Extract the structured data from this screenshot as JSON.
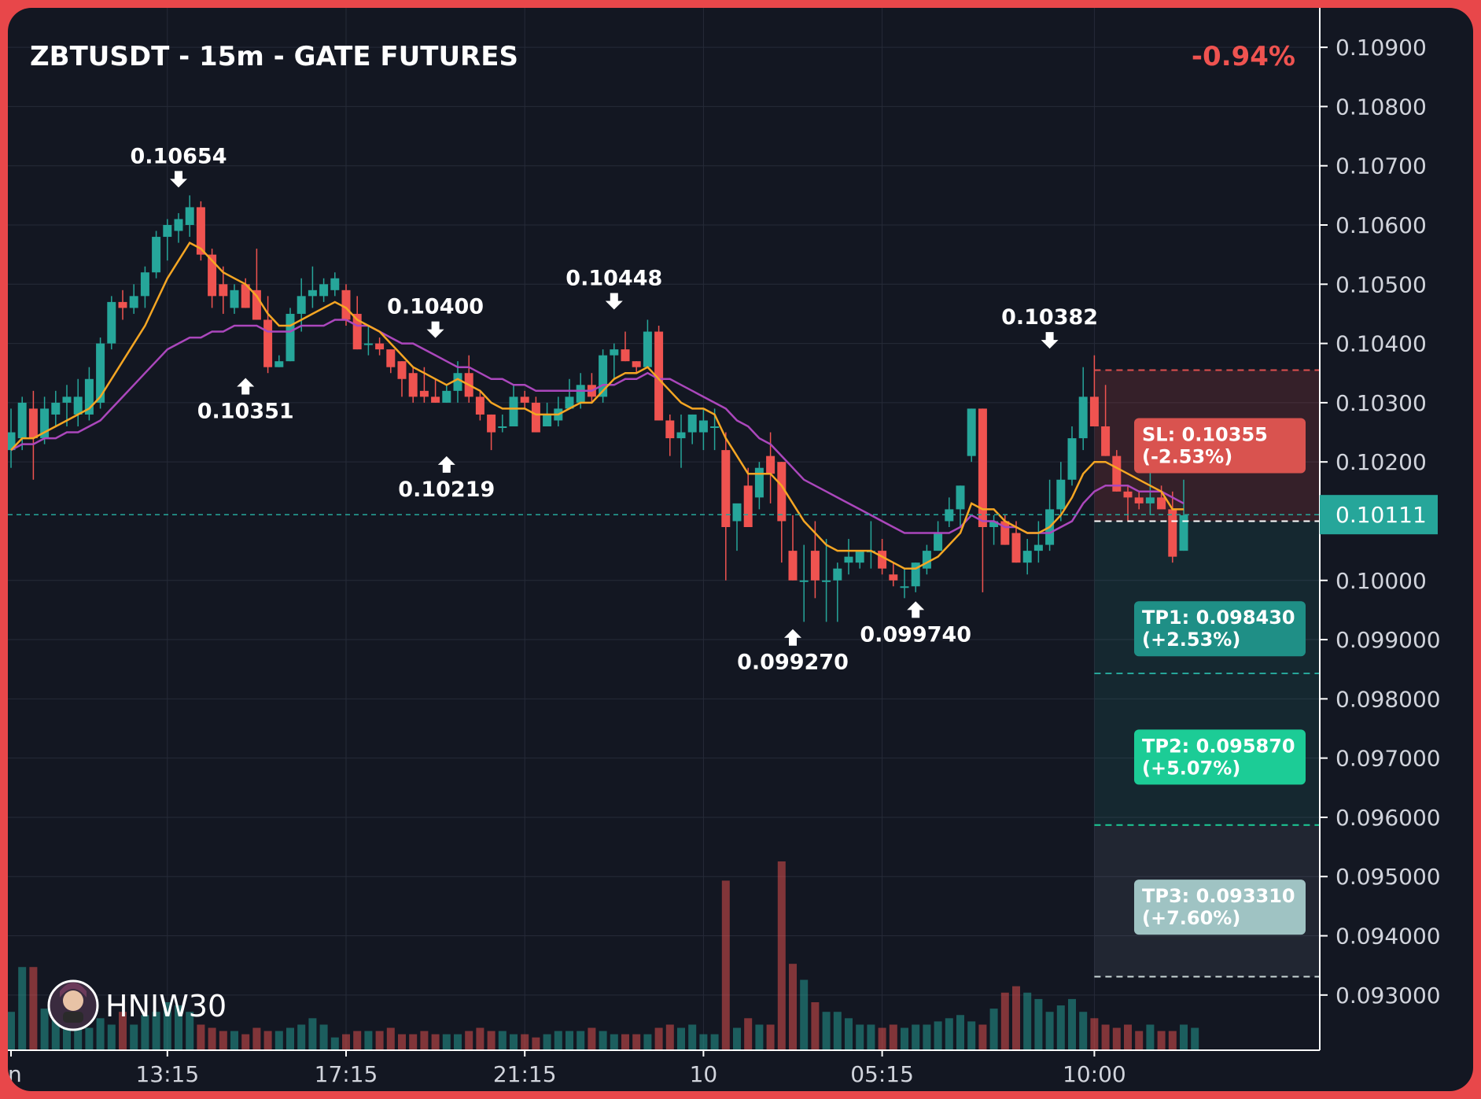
{
  "title": "ZBTUSDT - 15m - GATE FUTURES",
  "change": "-0.94%",
  "colors": {
    "background": "#131722",
    "up": "#26a69a",
    "down": "#ef5350",
    "ema_fast": "#f5a623",
    "ema_slow": "#ab47bc",
    "change": "#ef5350",
    "sl": "#d9534f",
    "tp1": "#1f8f86",
    "tp2": "#1ccc96",
    "tp3": "#9fc3c3",
    "current_price_tag": "#26a69a"
  },
  "watermark": {
    "avatar_icon": "avatar-icon",
    "text": "HNIW30"
  },
  "current_price": {
    "value": 0.10111,
    "label": "0.10111"
  },
  "levels": [
    {
      "name": "SL",
      "label_line1": "SL: 0.10355",
      "label_line2": "(-2.53%)",
      "price": 0.10355,
      "color": "#d9534f",
      "line_color": "#e0504f"
    },
    {
      "name": "Entry",
      "label_line1": "",
      "label_line2": "",
      "price": 0.101,
      "color": "#ffffff",
      "line_color": "#ffffff"
    },
    {
      "name": "TP1",
      "label_line1": "TP1: 0.098430",
      "label_line2": "(+2.53%)",
      "price": 0.09843,
      "color": "#1f8f86",
      "line_color": "#26a69a"
    },
    {
      "name": "TP2",
      "label_line1": "TP2: 0.095870",
      "label_line2": "(+5.07%)",
      "price": 0.09587,
      "color": "#1ccc96",
      "line_color": "#1ccc96"
    },
    {
      "name": "TP3",
      "label_line1": "TP3: 0.093310",
      "label_line2": "(+7.60%)",
      "price": 0.09331,
      "color": "#9fc3c3",
      "line_color": "#c9d6d6"
    }
  ],
  "chart_data": {
    "type": "candlestick",
    "title": "ZBTUSDT - 15m - GATE FUTURES",
    "ylim": [
      0.0924,
      0.1094
    ],
    "y_ticks": [
      "0.10900",
      "0.10800",
      "0.10700",
      "0.10600",
      "0.10500",
      "0.10400",
      "0.10300",
      "0.10200",
      "0.10111",
      "0.10000",
      "0.099000",
      "0.098000",
      "0.097000",
      "0.096000",
      "0.095000",
      "0.094000",
      "0.093000"
    ],
    "y_tick_values": [
      0.109,
      0.108,
      0.107,
      0.106,
      0.105,
      0.104,
      0.103,
      0.102,
      0.10111,
      0.1,
      0.099,
      0.098,
      0.097,
      0.096,
      0.095,
      0.094,
      0.093
    ],
    "x_ticks": [
      {
        "label": "n",
        "index": 0
      },
      {
        "label": "13:15",
        "index": 14
      },
      {
        "label": "17:15",
        "index": 30
      },
      {
        "label": "21:15",
        "index": 46
      },
      {
        "label": "10",
        "index": 62
      },
      {
        "label": "05:15",
        "index": 78
      },
      {
        "label": "10:00",
        "index": 97
      }
    ],
    "candles": [
      [
        0.1022,
        0.1029,
        0.1019,
        0.1025
      ],
      [
        0.1024,
        0.1031,
        0.1022,
        0.103
      ],
      [
        0.1029,
        0.1032,
        0.1017,
        0.1024
      ],
      [
        0.1024,
        0.1031,
        0.1023,
        0.1029
      ],
      [
        0.1028,
        0.1032,
        0.1026,
        0.103
      ],
      [
        0.103,
        0.1033,
        0.1026,
        0.1031
      ],
      [
        0.1028,
        0.1034,
        0.1026,
        0.1031
      ],
      [
        0.1028,
        0.1036,
        0.1027,
        0.1034
      ],
      [
        0.103,
        0.1041,
        0.1029,
        0.104
      ],
      [
        0.104,
        0.1048,
        0.1039,
        0.1047
      ],
      [
        0.1047,
        0.1049,
        0.1044,
        0.1046
      ],
      [
        0.1046,
        0.105,
        0.1045,
        0.1048
      ],
      [
        0.1048,
        0.1053,
        0.1046,
        0.1052
      ],
      [
        0.1052,
        0.1059,
        0.1051,
        0.1058
      ],
      [
        0.1058,
        0.1061,
        0.1054,
        0.106
      ],
      [
        0.1059,
        0.1062,
        0.1057,
        0.1061
      ],
      [
        0.106,
        0.1065,
        0.1058,
        0.1063
      ],
      [
        0.1063,
        0.1064,
        0.1054,
        0.1055
      ],
      [
        0.1055,
        0.1056,
        0.1046,
        0.1048
      ],
      [
        0.105,
        0.1053,
        0.1045,
        0.1048
      ],
      [
        0.1046,
        0.105,
        0.1045,
        0.1049
      ],
      [
        0.105,
        0.1051,
        0.1046,
        0.1046
      ],
      [
        0.1049,
        0.1056,
        0.1044,
        0.1044
      ],
      [
        0.1044,
        0.1048,
        0.1035,
        0.1036
      ],
      [
        0.1036,
        0.1038,
        0.1036,
        0.1037
      ],
      [
        0.1037,
        0.1046,
        0.1037,
        0.1045
      ],
      [
        0.1045,
        0.1051,
        0.1042,
        0.1048
      ],
      [
        0.1048,
        0.1053,
        0.1046,
        0.1049
      ],
      [
        0.1048,
        0.1051,
        0.1047,
        0.105
      ],
      [
        0.1049,
        0.1052,
        0.1048,
        0.1051
      ],
      [
        0.1049,
        0.105,
        0.1043,
        0.1044
      ],
      [
        0.1045,
        0.1048,
        0.1039,
        0.1039
      ],
      [
        0.104,
        0.1043,
        0.1038,
        0.104
      ],
      [
        0.104,
        0.1041,
        0.1038,
        0.1039
      ],
      [
        0.1039,
        0.1039,
        0.1035,
        0.1036
      ],
      [
        0.1037,
        0.1037,
        0.1031,
        0.1034
      ],
      [
        0.1035,
        0.1036,
        0.103,
        0.1031
      ],
      [
        0.1032,
        0.1036,
        0.103,
        0.1031
      ],
      [
        0.1031,
        0.1034,
        0.103,
        0.103
      ],
      [
        0.103,
        0.1033,
        0.103,
        0.1032
      ],
      [
        0.1032,
        0.1037,
        0.103,
        0.1035
      ],
      [
        0.1035,
        0.1038,
        0.103,
        0.1031
      ],
      [
        0.1031,
        0.1032,
        0.1027,
        0.1028
      ],
      [
        0.1028,
        0.1028,
        0.1022,
        0.1025
      ],
      [
        0.1026,
        0.1028,
        0.1025,
        0.1026
      ],
      [
        0.1026,
        0.1033,
        0.1026,
        0.1031
      ],
      [
        0.1031,
        0.1032,
        0.1029,
        0.103
      ],
      [
        0.103,
        0.1031,
        0.1025,
        0.1025
      ],
      [
        0.1026,
        0.103,
        0.1026,
        0.1028
      ],
      [
        0.1027,
        0.1031,
        0.1026,
        0.1029
      ],
      [
        0.1029,
        0.1034,
        0.1029,
        0.1031
      ],
      [
        0.103,
        0.1035,
        0.1029,
        0.1033
      ],
      [
        0.1033,
        0.1035,
        0.103,
        0.1031
      ],
      [
        0.1031,
        0.1039,
        0.103,
        0.1038
      ],
      [
        0.1038,
        0.104,
        0.1034,
        0.1039
      ],
      [
        0.1039,
        0.1042,
        0.1037,
        0.1037
      ],
      [
        0.1037,
        0.1037,
        0.1035,
        0.1036
      ],
      [
        0.1036,
        0.1044,
        0.1036,
        0.1042
      ],
      [
        0.1042,
        0.1043,
        0.1027,
        0.1027
      ],
      [
        0.1027,
        0.1028,
        0.1021,
        0.1024
      ],
      [
        0.1024,
        0.1028,
        0.1019,
        0.1025
      ],
      [
        0.1025,
        0.1028,
        0.1023,
        0.1028
      ],
      [
        0.1025,
        0.1029,
        0.1022,
        0.1027
      ],
      [
        0.1026,
        0.1029,
        0.1022,
        0.1026
      ],
      [
        0.1022,
        0.1025,
        0.1,
        0.1009
      ],
      [
        0.101,
        0.1012,
        0.1005,
        0.1013
      ],
      [
        0.1016,
        0.1019,
        0.1009,
        0.1009
      ],
      [
        0.1014,
        0.102,
        0.1012,
        0.1019
      ],
      [
        0.1021,
        0.1025,
        0.1013,
        0.1018
      ],
      [
        0.102,
        0.102,
        0.1003,
        0.101
      ],
      [
        0.1005,
        0.1011,
        0.1,
        0.1
      ],
      [
        0.1,
        0.1006,
        0.0993,
        0.1
      ],
      [
        0.1005,
        0.101,
        0.0997,
        0.1
      ],
      [
        0.1,
        0.1007,
        0.0993,
        0.1
      ],
      [
        0.1,
        0.1003,
        0.0993,
        0.1002
      ],
      [
        0.1003,
        0.1007,
        0.1001,
        0.1004
      ],
      [
        0.1003,
        0.1005,
        0.1002,
        0.1005
      ],
      [
        0.1005,
        0.101,
        0.1002,
        0.1005
      ],
      [
        0.1005,
        0.1007,
        0.1001,
        0.1002
      ],
      [
        0.1001,
        0.1003,
        0.0999,
        0.1
      ],
      [
        0.0999,
        0.1002,
        0.0997,
        0.0999
      ],
      [
        0.0999,
        0.1003,
        0.0998,
        0.1003
      ],
      [
        0.1002,
        0.1006,
        0.1001,
        0.1005
      ],
      [
        0.1005,
        0.101,
        0.1005,
        0.1008
      ],
      [
        0.101,
        0.1014,
        0.1009,
        0.1012
      ],
      [
        0.1012,
        0.1016,
        0.1009,
        0.1016
      ],
      [
        0.1021,
        0.1029,
        0.102,
        0.1029
      ],
      [
        0.1029,
        0.1029,
        0.0998,
        0.1009
      ],
      [
        0.1009,
        0.1011,
        0.1006,
        0.101
      ],
      [
        0.101,
        0.1011,
        0.1006,
        0.1006
      ],
      [
        0.1008,
        0.101,
        0.1003,
        0.1003
      ],
      [
        0.1003,
        0.1007,
        0.1001,
        0.1005
      ],
      [
        0.1005,
        0.101,
        0.1003,
        0.1006
      ],
      [
        0.1006,
        0.1017,
        0.1005,
        0.1012
      ],
      [
        0.1012,
        0.102,
        0.101,
        0.1017
      ],
      [
        0.1017,
        0.1026,
        0.1016,
        0.1024
      ],
      [
        0.1024,
        0.1036,
        0.1022,
        0.1031
      ],
      [
        0.1031,
        0.1038,
        0.1026,
        0.1026
      ],
      [
        0.1026,
        0.1033,
        0.1021,
        0.1021
      ],
      [
        0.1021,
        0.1022,
        0.1015,
        0.1015
      ],
      [
        0.1015,
        0.1016,
        0.101,
        0.1014
      ],
      [
        0.1014,
        0.1015,
        0.1012,
        0.1013
      ],
      [
        0.1013,
        0.1019,
        0.1011,
        0.1014
      ],
      [
        0.1014,
        0.1016,
        0.1013,
        0.1012
      ],
      [
        0.1012,
        0.1015,
        0.1003,
        0.1004
      ],
      [
        0.1005,
        0.1017,
        0.1005,
        0.1011
      ]
    ],
    "volume": [
      12,
      26,
      26,
      13,
      10,
      8,
      8,
      7,
      10,
      8,
      12,
      8,
      11,
      12,
      15,
      14,
      12,
      8,
      7,
      6,
      6,
      5,
      7,
      6,
      6,
      7,
      8,
      10,
      8,
      4,
      5,
      6,
      6,
      6,
      7,
      5,
      5,
      6,
      5,
      5,
      5,
      6,
      7,
      6,
      6,
      5,
      5,
      4,
      5,
      6,
      6,
      6,
      7,
      6,
      5,
      5,
      5,
      5,
      7,
      8,
      7,
      8,
      5,
      5,
      53,
      7,
      10,
      8,
      8,
      59,
      27,
      22,
      15,
      12,
      12,
      10,
      8,
      8,
      7,
      8,
      7,
      8,
      8,
      9,
      10,
      11,
      9,
      8,
      13,
      18,
      20,
      18,
      16,
      12,
      14,
      16,
      12,
      10,
      8,
      7,
      8,
      6,
      8,
      6,
      6,
      8,
      7
    ],
    "ema_fast": [
      0.1022,
      0.1024,
      0.1024,
      0.1025,
      0.1026,
      0.1027,
      0.1028,
      0.1029,
      0.1031,
      0.1034,
      0.1037,
      0.104,
      0.1043,
      0.1047,
      0.1051,
      0.1054,
      0.1057,
      0.1056,
      0.1054,
      0.1052,
      0.1051,
      0.105,
      0.1048,
      0.1045,
      0.1043,
      0.1043,
      0.1044,
      0.1045,
      0.1046,
      0.1047,
      0.1046,
      0.1044,
      0.1043,
      0.1042,
      0.104,
      0.1038,
      0.1036,
      0.1035,
      0.1034,
      0.1033,
      0.1034,
      0.1033,
      0.1032,
      0.103,
      0.1029,
      0.1029,
      0.1029,
      0.1028,
      0.1028,
      0.1028,
      0.1029,
      0.103,
      0.103,
      0.1032,
      0.1034,
      0.1035,
      0.1035,
      0.1036,
      0.1034,
      0.1032,
      0.103,
      0.1029,
      0.1029,
      0.1028,
      0.1024,
      0.1021,
      0.1018,
      0.1018,
      0.1018,
      0.1016,
      0.1013,
      0.101,
      0.1008,
      0.1006,
      0.1005,
      0.1005,
      0.1005,
      0.1005,
      0.1004,
      0.1003,
      0.1002,
      0.1002,
      0.1003,
      0.1004,
      0.1006,
      0.1008,
      0.1013,
      0.1012,
      0.1012,
      0.101,
      0.1009,
      0.1008,
      0.1008,
      0.1009,
      0.1011,
      0.1014,
      0.1018,
      0.102,
      0.102,
      0.1019,
      0.1018,
      0.1017,
      0.1016,
      0.1015,
      0.1012,
      0.1012
    ],
    "ema_slow": [
      0.1022,
      0.1023,
      0.1023,
      0.1024,
      0.1024,
      0.1025,
      0.1025,
      0.1026,
      0.1027,
      0.1029,
      0.1031,
      0.1033,
      0.1035,
      0.1037,
      0.1039,
      0.104,
      0.1041,
      0.1041,
      0.1042,
      0.1042,
      0.1043,
      0.1043,
      0.1043,
      0.1042,
      0.1042,
      0.1042,
      0.1043,
      0.1043,
      0.1043,
      0.1044,
      0.1044,
      0.1043,
      0.1043,
      0.1042,
      0.1041,
      0.104,
      0.104,
      0.1039,
      0.1038,
      0.1037,
      0.1036,
      0.1036,
      0.1035,
      0.1034,
      0.1034,
      0.1033,
      0.1033,
      0.1032,
      0.1032,
      0.1032,
      0.1032,
      0.1032,
      0.1032,
      0.1033,
      0.1033,
      0.1034,
      0.1034,
      0.1035,
      0.1034,
      0.1034,
      0.1033,
      0.1032,
      0.1031,
      0.103,
      0.1029,
      0.1027,
      0.1026,
      0.1024,
      0.1023,
      0.1021,
      0.1019,
      0.1017,
      0.1016,
      0.1015,
      0.1014,
      0.1013,
      0.1012,
      0.1011,
      0.101,
      0.1009,
      0.1008,
      0.1008,
      0.1008,
      0.1008,
      0.1008,
      0.1009,
      0.1011,
      0.101,
      0.101,
      0.1009,
      0.1009,
      0.1008,
      0.1008,
      0.1008,
      0.1009,
      0.101,
      0.1013,
      0.1015,
      0.1016,
      0.1016,
      0.1016,
      0.1015,
      0.1015,
      0.1015,
      0.1014,
      0.1013
    ],
    "annotations": [
      {
        "label": "0.10654",
        "index": 15,
        "price": 0.10654,
        "kind": "high"
      },
      {
        "label": "0.10351",
        "index": 21,
        "price": 0.10351,
        "kind": "low"
      },
      {
        "label": "0.10400",
        "index": 38,
        "price": 0.104,
        "kind": "high"
      },
      {
        "label": "0.10219",
        "index": 39,
        "price": 0.10219,
        "kind": "low"
      },
      {
        "label": "0.10448",
        "index": 54,
        "price": 0.10448,
        "kind": "high"
      },
      {
        "label": "0.099270",
        "index": 70,
        "price": 0.09927,
        "kind": "low"
      },
      {
        "label": "0.099740",
        "index": 81,
        "price": 0.09974,
        "kind": "low"
      },
      {
        "label": "0.10382",
        "index": 93,
        "price": 0.10382,
        "kind": "high"
      }
    ]
  }
}
